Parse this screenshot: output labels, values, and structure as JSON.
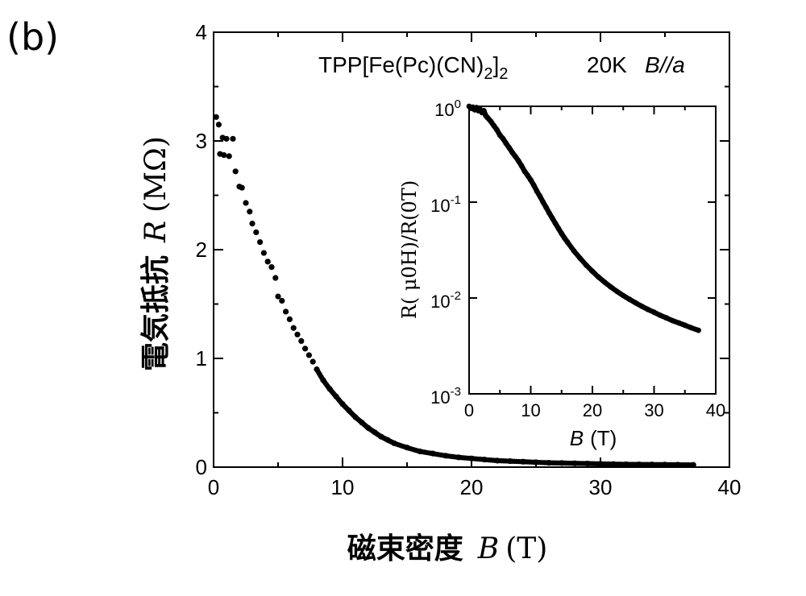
{
  "panel_label": "(b)",
  "chart_data": [
    {
      "type": "scatter",
      "xlabel": {
        "jp": "磁束密度",
        "symbol": "B",
        "unit": "(T)"
      },
      "ylabel": {
        "jp": "電気抵抗",
        "symbol": "R",
        "unit": "(MΩ)"
      },
      "xlim": [
        0,
        40
      ],
      "ylim": [
        0,
        4
      ],
      "xticks": [
        "0",
        "10",
        "20",
        "30",
        "40"
      ],
      "yticks": [
        "0",
        "1",
        "2",
        "3",
        "4"
      ],
      "annotation": {
        "compound": "TPP[Fe(Pc)(CN)",
        "sub1": "2",
        "close": "]",
        "sub2": "2",
        "temp": "20K",
        "direction": "B//a"
      },
      "series": [
        {
          "x": [
            0.2,
            0.4,
            0.5,
            0.7,
            0.8,
            1.0,
            1.2,
            1.5,
            1.7,
            2.0,
            2.2,
            2.5,
            2.8,
            3.0,
            3.3,
            3.6,
            3.9,
            4.2,
            4.5,
            4.8,
            5.0,
            5.3,
            5.6,
            5.9,
            6.2,
            6.5,
            6.8,
            7.1,
            7.4,
            7.7,
            8.0,
            8.5,
            9.0,
            9.5,
            10.0,
            10.5,
            11.0,
            11.5,
            12.0,
            12.5,
            13.0,
            13.5,
            14.0,
            15.0,
            16.0,
            17.0,
            18.0,
            19.0,
            20.0,
            21.0,
            22.0,
            23.0,
            24.0,
            25.0,
            26.0,
            27.0,
            28.0,
            29.0,
            30.0,
            31.0,
            32.0,
            33.0,
            34.0,
            35.0,
            36.0,
            37.2
          ],
          "y": [
            3.22,
            3.15,
            2.88,
            3.03,
            2.87,
            3.02,
            2.86,
            3.02,
            2.72,
            2.58,
            2.57,
            2.43,
            2.35,
            2.24,
            2.16,
            2.07,
            1.97,
            1.89,
            1.84,
            1.74,
            1.57,
            1.53,
            1.43,
            1.36,
            1.28,
            1.22,
            1.16,
            1.09,
            1.03,
            0.97,
            0.9,
            0.8,
            0.72,
            0.65,
            0.58,
            0.52,
            0.46,
            0.41,
            0.36,
            0.32,
            0.28,
            0.25,
            0.22,
            0.18,
            0.145,
            0.125,
            0.105,
            0.09,
            0.08,
            0.07,
            0.06,
            0.055,
            0.05,
            0.045,
            0.04,
            0.038,
            0.035,
            0.033,
            0.03,
            0.028,
            0.026,
            0.025,
            0.024,
            0.023,
            0.022,
            0.021
          ]
        }
      ]
    },
    {
      "type": "scatter",
      "yscale": "log",
      "xlabel": {
        "symbol": "B",
        "unit": "(T)"
      },
      "ylabel": {
        "text": "R( μ0H)/R(0T)"
      },
      "xlim": [
        0,
        40
      ],
      "ylim": [
        0.001,
        1
      ],
      "xticks": [
        "0",
        "10",
        "20",
        "30",
        "40"
      ],
      "yticks": [
        {
          "value": 1,
          "base": "10",
          "exp": "0"
        },
        {
          "value": 0.1,
          "base": "10",
          "exp": "-1"
        },
        {
          "value": 0.01,
          "base": "10",
          "exp": "-2"
        },
        {
          "value": 0.001,
          "base": "10",
          "exp": "-3"
        }
      ],
      "series": [
        {
          "x": [
            0.0,
            0.3,
            0.6,
            0.9,
            1.2,
            1.5,
            1.8,
            2.1,
            2.4,
            2.7,
            3.0,
            3.5,
            4.0,
            4.5,
            5.0,
            5.5,
            6.0,
            6.5,
            7.0,
            7.5,
            8.0,
            8.5,
            9.0,
            9.5,
            10.0,
            10.5,
            11.0,
            11.5,
            12.0,
            12.5,
            13.0,
            13.5,
            14.0,
            14.5,
            15.0,
            15.5,
            16.0,
            17.0,
            18.0,
            19.0,
            20.0,
            21.0,
            22.0,
            23.0,
            24.0,
            25.0,
            26.0,
            27.0,
            28.0,
            29.0,
            30.0,
            31.0,
            32.0,
            33.0,
            34.0,
            35.0,
            36.0,
            37.2
          ],
          "y": [
            1.0,
            0.95,
            0.98,
            0.92,
            0.97,
            0.9,
            0.93,
            0.86,
            0.9,
            0.8,
            0.76,
            0.7,
            0.63,
            0.57,
            0.5,
            0.46,
            0.41,
            0.37,
            0.33,
            0.3,
            0.27,
            0.24,
            0.21,
            0.19,
            0.17,
            0.15,
            0.13,
            0.115,
            0.1,
            0.088,
            0.077,
            0.068,
            0.06,
            0.053,
            0.047,
            0.042,
            0.038,
            0.031,
            0.026,
            0.022,
            0.019,
            0.0165,
            0.0146,
            0.013,
            0.0117,
            0.0106,
            0.0097,
            0.0089,
            0.0082,
            0.0076,
            0.0071,
            0.0066,
            0.0062,
            0.0058,
            0.0055,
            0.0052,
            0.0049,
            0.0046
          ]
        }
      ]
    }
  ]
}
